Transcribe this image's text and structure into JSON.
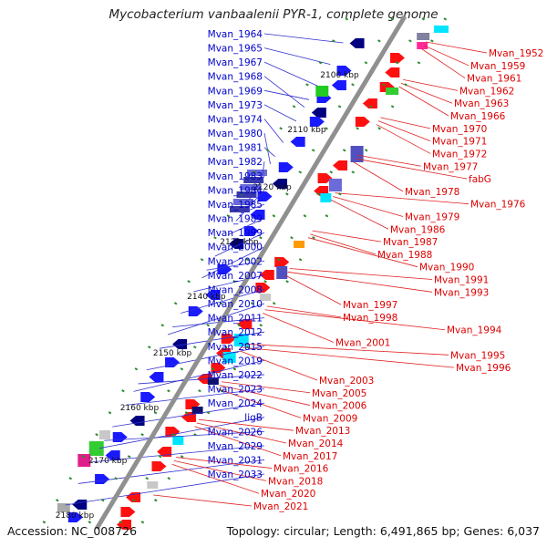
{
  "title": "Mycobacterium vanbaalenii PYR-1, complete genome",
  "accession_label": "Accession: NC_008726",
  "summary_label": "Topology: circular; Length: 6,491,865 bp; Genes: 6,037",
  "colors": {
    "left_label": "#0000cc",
    "right_label": "#dd0000",
    "left_line": "#3030d0",
    "right_line": "#e02020",
    "backbone": "#909090",
    "tick": "#2e8b2e"
  },
  "scale_ticks": [
    "2100 kbp",
    "2110 kbp",
    "2120 kbp",
    "2130 kbp",
    "2140 kbp",
    "2150 kbp",
    "2160 kbp",
    "2170 kbp",
    "2180 kbp"
  ],
  "left_labels": [
    "Mvan_1964",
    "Mvan_1965",
    "Mvan_1967",
    "Mvan_1968",
    "Mvan_1969",
    "Mvan_1973",
    "Mvan_1974",
    "Mvan_1980",
    "Mvan_1981",
    "Mvan_1982",
    "Mvan_1983",
    "Mvan_1984",
    "Mvan_1985",
    "Mvan_1989",
    "Mvan_1999",
    "Mvan_2000",
    "Mvan_2002",
    "Mvan_2007",
    "Mvan_2008",
    "Mvan_2010",
    "Mvan_2011",
    "Mvan_2012",
    "Mvan_2015",
    "Mvan_2019",
    "Mvan_2022",
    "Mvan_2023",
    "Mvan_2024",
    "ligB",
    "Mvan_2026",
    "Mvan_2029",
    "Mvan_2031",
    "Mvan_2033"
  ],
  "right_labels": [
    "Mvan_1952",
    "Mvan_1959",
    "Mvan_1961",
    "Mvan_1962",
    "Mvan_1963",
    "Mvan_1966",
    "Mvan_1970",
    "Mvan_1971",
    "Mvan_1972",
    "Mvan_1977",
    "fabG",
    "Mvan_1978",
    "Mvan_1976",
    "Mvan_1979",
    "Mvan_1986",
    "Mvan_1987",
    "Mvan_1988",
    "Mvan_1990",
    "Mvan_1991",
    "Mvan_1993",
    "Mvan_1997",
    "Mvan_1998",
    "Mvan_1994",
    "Mvan_2001",
    "Mvan_1995",
    "Mvan_1996",
    "Mvan_2003",
    "Mvan_2005",
    "Mvan_2006",
    "Mvan_2009",
    "Mvan_2013",
    "Mvan_2014",
    "Mvan_2017",
    "Mvan_2016",
    "Mvan_2018",
    "Mvan_2020",
    "Mvan_2021"
  ]
}
